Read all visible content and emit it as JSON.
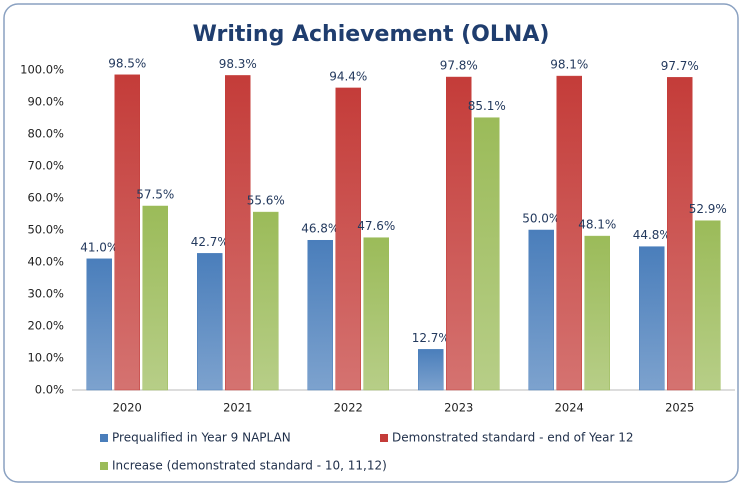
{
  "chart_data": {
    "type": "bar",
    "title": "Writing Achievement (OLNA)",
    "categories": [
      "2020",
      "2021",
      "2022",
      "2023",
      "2024",
      "2025"
    ],
    "series": [
      {
        "name": "Prequalified in Year 9 NAPLAN",
        "color": "#4a7ebb",
        "values": [
          41.0,
          42.7,
          46.8,
          12.7,
          50.0,
          44.8
        ],
        "value_labels": [
          "41.0%",
          "42.7%",
          "46.8%",
          "12.7%",
          "50.0%",
          "44.8%"
        ]
      },
      {
        "name": "Demonstrated standard - end of Year 12",
        "color": "#c43c39",
        "values": [
          98.5,
          98.3,
          94.4,
          97.8,
          98.1,
          97.7
        ],
        "value_labels": [
          "98.5%",
          "98.3%",
          "94.4%",
          "97.8%",
          "98.1%",
          "97.7%"
        ]
      },
      {
        "name": "Increase (demonstrated standard - 10, 11,12)",
        "color": "#9bbb59",
        "values": [
          57.5,
          55.6,
          47.6,
          85.1,
          48.1,
          52.9
        ],
        "value_labels": [
          "57.5%",
          "55.6%",
          "47.6%",
          "85.1%",
          "48.1%",
          "52.9%"
        ]
      }
    ],
    "ylim": [
      0,
      100
    ],
    "yticks": [
      {
        "value": 0,
        "label": "0.0%"
      },
      {
        "value": 10,
        "label": "10.0%"
      },
      {
        "value": 20,
        "label": "20.0%"
      },
      {
        "value": 30,
        "label": "30.0%"
      },
      {
        "value": 40,
        "label": "40.0%"
      },
      {
        "value": 50,
        "label": "50.0%"
      },
      {
        "value": 60,
        "label": "60.0%"
      },
      {
        "value": 70,
        "label": "70.0%"
      },
      {
        "value": 80,
        "label": "80.0%"
      },
      {
        "value": 90,
        "label": "90.0%"
      },
      {
        "value": 100,
        "label": "100.0%"
      }
    ]
  }
}
